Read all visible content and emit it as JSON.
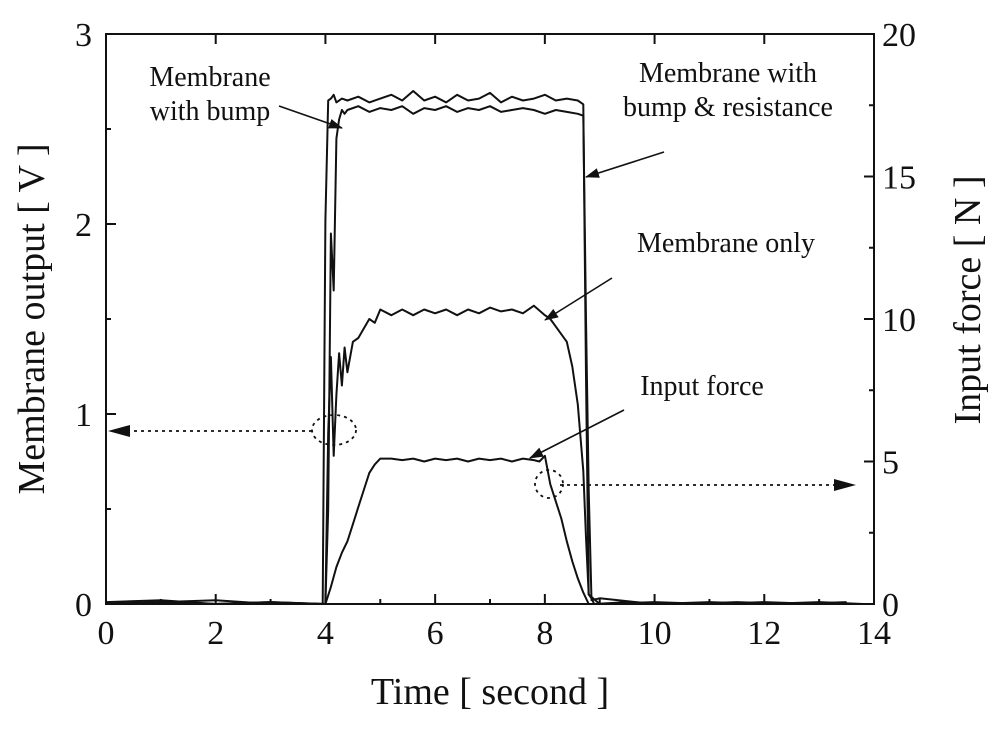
{
  "chart_data": {
    "type": "line",
    "xlabel": "Time [ second ]",
    "ylabel_left": "Membrane output  [ V ]",
    "ylabel_right": "Input force [ N ]",
    "xlim": [
      0,
      14
    ],
    "ylim_left": [
      0,
      3
    ],
    "ylim_right": [
      0,
      20
    ],
    "x_ticks": [
      0,
      2,
      4,
      6,
      8,
      10,
      12,
      14
    ],
    "y_ticks_left": [
      0,
      1,
      2,
      3
    ],
    "y_ticks_right": [
      0,
      5,
      10,
      15,
      20
    ],
    "x_tick_labels": [
      "0",
      "2",
      "4",
      "6",
      "8",
      "10",
      "12",
      "14"
    ],
    "y_tick_labels_left": [
      "0",
      "1",
      "2",
      "3"
    ],
    "y_tick_labels_right": [
      "0",
      "5",
      "10",
      "15",
      "20"
    ],
    "grid": false,
    "annotations": [
      {
        "id": "bump",
        "lines": [
          "Membrane",
          "with bump"
        ]
      },
      {
        "id": "bump-res",
        "lines": [
          "Membrane with",
          "bump & resistance"
        ]
      },
      {
        "id": "only",
        "lines": [
          "Membrane only"
        ]
      },
      {
        "id": "force",
        "lines": [
          "Input force"
        ]
      }
    ],
    "series": [
      {
        "name": "Membrane with bump",
        "axis": "left",
        "x": [
          0,
          1,
          2,
          3,
          3.95,
          4.0,
          4.05,
          4.1,
          4.15,
          4.2,
          4.3,
          4.4,
          4.6,
          4.8,
          5.0,
          5.2,
          5.4,
          5.6,
          5.8,
          6.0,
          6.2,
          6.4,
          6.6,
          6.8,
          7.0,
          7.2,
          7.4,
          7.6,
          7.8,
          8.0,
          8.2,
          8.4,
          8.6,
          8.7,
          8.75,
          8.8,
          8.85,
          8.9,
          9.5,
          10.5,
          11.5,
          12.5,
          13.5
        ],
        "values": [
          0.01,
          0.02,
          0.0,
          0.01,
          0.0,
          2.02,
          2.65,
          2.66,
          2.68,
          2.64,
          2.66,
          2.65,
          2.67,
          2.64,
          2.66,
          2.68,
          2.65,
          2.7,
          2.65,
          2.67,
          2.64,
          2.68,
          2.65,
          2.66,
          2.69,
          2.64,
          2.67,
          2.65,
          2.66,
          2.68,
          2.65,
          2.66,
          2.65,
          2.63,
          1.2,
          0.05,
          0.03,
          0.0,
          0.01,
          0.0,
          0.01,
          0.0,
          0.01
        ]
      },
      {
        "name": "Membrane with bump & resistance",
        "axis": "left",
        "x": [
          0,
          1,
          2,
          3,
          4.0,
          4.05,
          4.1,
          4.15,
          4.2,
          4.25,
          4.3,
          4.35,
          4.4,
          4.6,
          4.8,
          5.0,
          5.2,
          5.4,
          5.6,
          5.8,
          6.0,
          6.2,
          6.4,
          6.6,
          6.8,
          7.0,
          7.2,
          7.4,
          7.6,
          7.8,
          8.0,
          8.2,
          8.4,
          8.6,
          8.7,
          8.75,
          8.8,
          8.85,
          9.0,
          10.0,
          11.0,
          12.0,
          13.0,
          13.8
        ],
        "values": [
          0.0,
          0.01,
          0.02,
          0.0,
          0.0,
          0.5,
          1.95,
          1.65,
          2.45,
          2.55,
          2.6,
          2.58,
          2.6,
          2.62,
          2.59,
          2.61,
          2.6,
          2.62,
          2.58,
          2.61,
          2.6,
          2.62,
          2.59,
          2.61,
          2.6,
          2.62,
          2.59,
          2.6,
          2.61,
          2.6,
          2.58,
          2.6,
          2.59,
          2.58,
          2.57,
          1.5,
          0.6,
          0.02,
          0.03,
          0.0,
          0.01,
          0.0,
          0.01,
          0.0
        ]
      },
      {
        "name": "Membrane only",
        "axis": "left",
        "x": [
          0,
          1,
          2,
          3,
          4.0,
          4.05,
          4.1,
          4.15,
          4.2,
          4.25,
          4.3,
          4.35,
          4.4,
          4.5,
          4.6,
          4.7,
          4.8,
          4.9,
          5.0,
          5.2,
          5.4,
          5.6,
          5.8,
          6.0,
          6.2,
          6.4,
          6.6,
          6.8,
          7.0,
          7.2,
          7.4,
          7.6,
          7.8,
          8.0,
          8.1,
          8.2,
          8.3,
          8.4,
          8.5,
          8.6,
          8.7,
          8.75,
          8.8,
          9.0,
          10.0,
          11.0,
          12.0,
          13.0
        ],
        "values": [
          0.0,
          0.01,
          0.0,
          0.01,
          0.0,
          0.9,
          1.3,
          0.78,
          1.1,
          1.32,
          1.15,
          1.35,
          1.22,
          1.38,
          1.4,
          1.45,
          1.5,
          1.48,
          1.55,
          1.52,
          1.55,
          1.52,
          1.55,
          1.53,
          1.55,
          1.52,
          1.55,
          1.53,
          1.56,
          1.54,
          1.55,
          1.53,
          1.57,
          1.52,
          1.5,
          1.46,
          1.42,
          1.38,
          1.25,
          1.05,
          0.7,
          0.35,
          0.05,
          0.0,
          0.01,
          0.0,
          0.01,
          0.0
        ]
      },
      {
        "name": "Input force",
        "axis": "right",
        "x": [
          0,
          1,
          2,
          3,
          4.0,
          4.1,
          4.2,
          4.3,
          4.4,
          4.5,
          4.6,
          4.7,
          4.8,
          4.9,
          5.0,
          5.2,
          5.4,
          5.6,
          5.8,
          6.0,
          6.2,
          6.4,
          6.6,
          6.8,
          7.0,
          7.2,
          7.4,
          7.6,
          7.8,
          7.9,
          8.0,
          8.1,
          8.2,
          8.3,
          8.4,
          8.5,
          8.6,
          8.7,
          8.8,
          9.0,
          10.0,
          11.0,
          12.0,
          13.0,
          13.8
        ],
        "values": [
          0.0,
          0.05,
          0.0,
          0.05,
          0.0,
          0.6,
          1.3,
          1.8,
          2.2,
          2.8,
          3.4,
          4.0,
          4.6,
          4.9,
          5.1,
          5.1,
          5.05,
          5.1,
          5.0,
          5.1,
          5.05,
          5.1,
          5.0,
          5.1,
          5.05,
          5.1,
          5.0,
          5.1,
          5.05,
          5.0,
          5.2,
          4.2,
          3.6,
          3.0,
          2.2,
          1.5,
          0.9,
          0.4,
          0.0,
          0.0,
          0.05,
          0.0,
          0.05,
          0.0,
          0.0
        ]
      }
    ]
  }
}
